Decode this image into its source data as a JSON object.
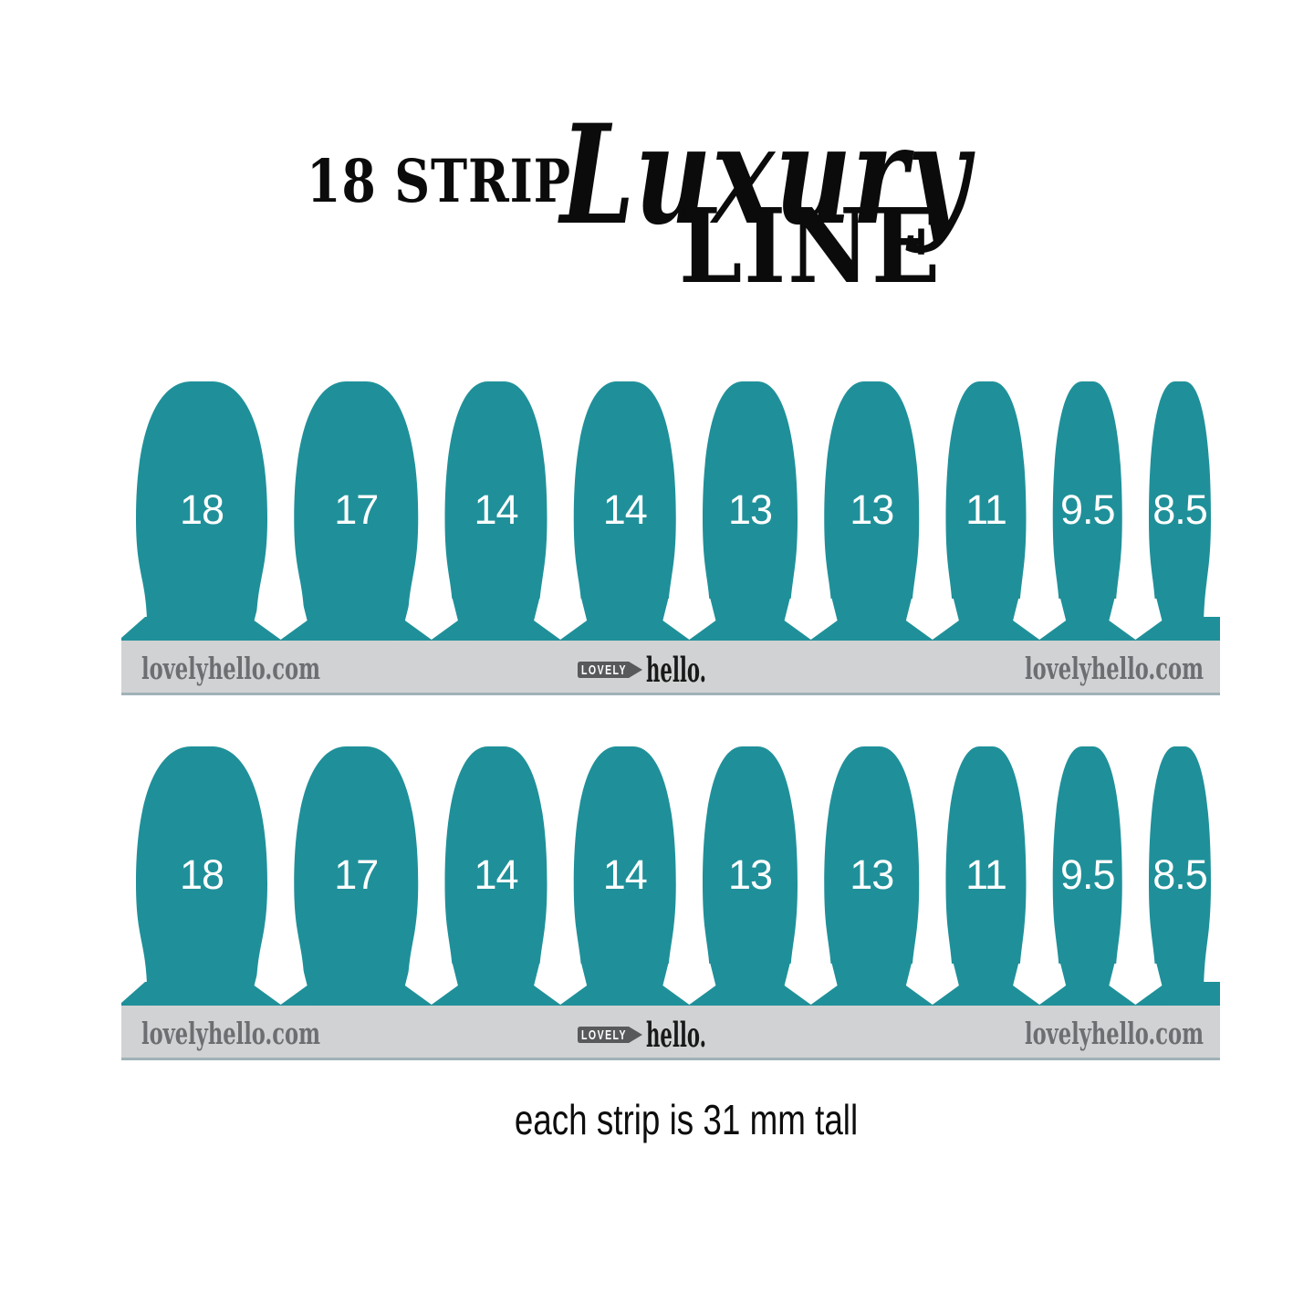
{
  "title": {
    "line1": "18 STRIP",
    "script_word": "Luxury",
    "line2": "LINE"
  },
  "strips": {
    "labels": [
      "18",
      "17",
      "14",
      "14",
      "13",
      "13",
      "11",
      "9.5",
      "8.5"
    ],
    "widths_mm": [
      18,
      17,
      14,
      14,
      13,
      13,
      11,
      9.5,
      8.5
    ],
    "row_count": 2
  },
  "bar": {
    "site_left": "lovelyhello.com",
    "logo_badge": "LOVELY",
    "logo_word": "hello.",
    "site_right": "lovelyhello.com"
  },
  "caption": "each strip is 31 mm tall",
  "colors": {
    "teal": "#1F9099",
    "bar_gray": "#D0D2D3",
    "bar_edge": "#9FB2B8",
    "site_text": "#6D6E71",
    "badge": "#58595B",
    "logo_word_color": "#191919",
    "number_text": "#FFFFFF",
    "title_black": "#0B0B0B",
    "background": "#FFFFFF"
  }
}
